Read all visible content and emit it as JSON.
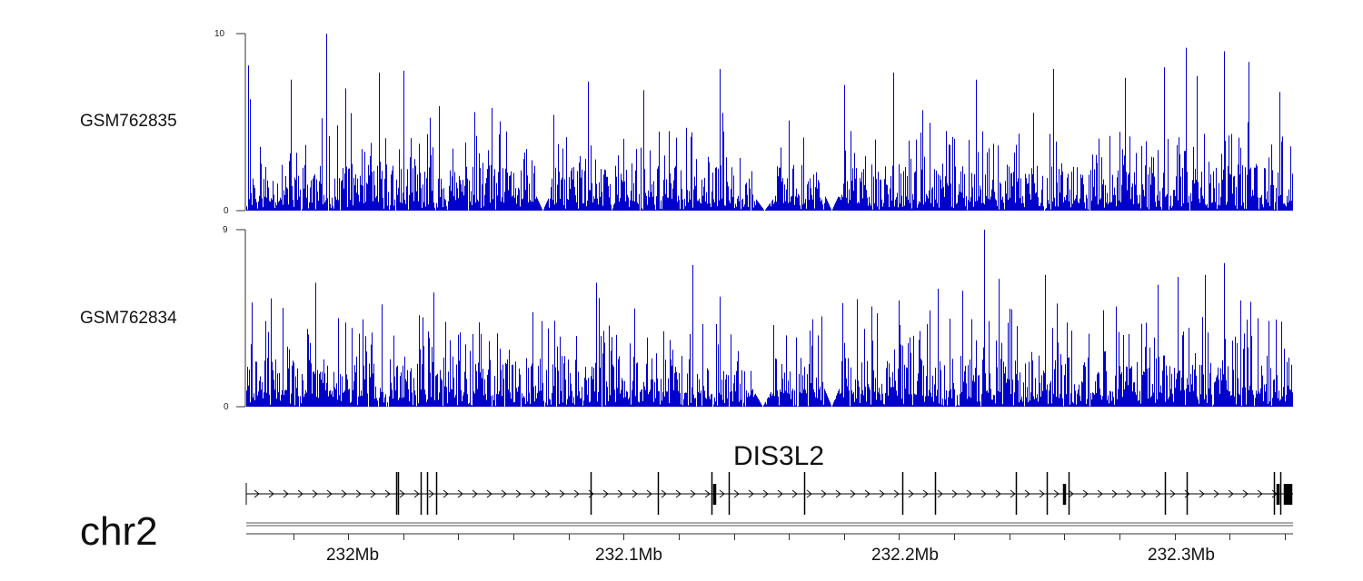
{
  "colors": {
    "coverage": "#0000cc",
    "axis": "#333333",
    "gene": "#000000"
  },
  "chart_data": {
    "type": "area",
    "x_range_mb": [
      231.963,
      232.343
    ],
    "series": [
      {
        "name": "GSM762835",
        "ylim": [
          0,
          10
        ],
        "yticks": [
          "0",
          "10"
        ],
        "seed": 11,
        "peaks": [
          [
            231.9636,
            8.2
          ],
          [
            231.9643,
            6.3
          ],
          [
            231.979,
            7.4
          ],
          [
            231.992,
            10.0
          ],
          [
            231.999,
            6.9
          ],
          [
            232.011,
            7.8
          ],
          [
            232.02,
            7.9
          ],
          [
            232.033,
            5.9
          ],
          [
            232.052,
            5.8
          ],
          [
            232.087,
            7.3
          ],
          [
            232.107,
            6.8
          ],
          [
            232.135,
            8.0
          ],
          [
            232.18,
            7.1
          ],
          [
            232.198,
            7.8
          ],
          [
            232.228,
            7.4
          ],
          [
            232.256,
            8.0
          ],
          [
            232.282,
            7.5
          ],
          [
            232.296,
            8.1
          ],
          [
            232.304,
            9.2
          ],
          [
            232.308,
            7.6
          ],
          [
            232.318,
            9.0
          ],
          [
            232.327,
            8.4
          ],
          [
            232.338,
            6.7
          ]
        ],
        "gaps": [
          [
            232.069,
            232.072
          ],
          [
            232.148,
            232.154
          ],
          [
            232.174,
            232.177
          ]
        ]
      },
      {
        "name": "GSM762834",
        "ylim": [
          0,
          9
        ],
        "yticks": [
          "0",
          "9"
        ],
        "seed": 29,
        "peaks": [
          [
            231.965,
            5.3
          ],
          [
            231.972,
            5.5
          ],
          [
            231.988,
            6.3
          ],
          [
            232.012,
            5.2
          ],
          [
            232.031,
            5.8
          ],
          [
            232.067,
            4.8
          ],
          [
            232.09,
            6.3
          ],
          [
            232.104,
            5.0
          ],
          [
            232.125,
            7.2
          ],
          [
            232.135,
            5.6
          ],
          [
            232.19,
            5.1
          ],
          [
            232.2,
            5.4
          ],
          [
            232.214,
            6.0
          ],
          [
            232.223,
            5.9
          ],
          [
            232.231,
            9.0
          ],
          [
            232.236,
            6.5
          ],
          [
            232.253,
            6.7
          ],
          [
            232.274,
            4.9
          ],
          [
            232.294,
            6.2
          ],
          [
            232.301,
            6.6
          ],
          [
            232.311,
            6.7
          ],
          [
            232.318,
            7.3
          ],
          [
            232.324,
            5.4
          ],
          [
            232.33,
            4.5
          ]
        ],
        "gaps": [
          [
            232.148,
            232.153
          ],
          [
            232.174,
            232.177
          ]
        ]
      }
    ],
    "gene": {
      "name": "DIS3L2",
      "start_mb": 231.963,
      "end_mb": 232.343,
      "strand": "+",
      "exons_mb": [
        232.0174,
        232.018,
        232.0262,
        232.0286,
        232.0318,
        232.088,
        232.1125,
        232.132,
        232.133,
        232.138,
        232.1655,
        232.201,
        232.213,
        232.2425,
        232.2535,
        232.26,
        232.2615,
        232.2965,
        232.3045,
        232.336,
        232.3375,
        232.3385,
        232.34,
        232.341,
        232.342
      ],
      "thick_exons_mb": [
        232.133,
        232.26,
        232.337,
        232.34,
        232.3415,
        232.3425
      ]
    },
    "chromosome": "chr2",
    "genomic_axis": {
      "labels": [
        {
          "pos_mb": 232.0,
          "label": "232Mb"
        },
        {
          "pos_mb": 232.1,
          "label": "232.1Mb"
        },
        {
          "pos_mb": 232.2,
          "label": "232.2Mb"
        },
        {
          "pos_mb": 232.3,
          "label": "232.3Mb"
        }
      ],
      "minor_step_mb": 0.02
    }
  }
}
